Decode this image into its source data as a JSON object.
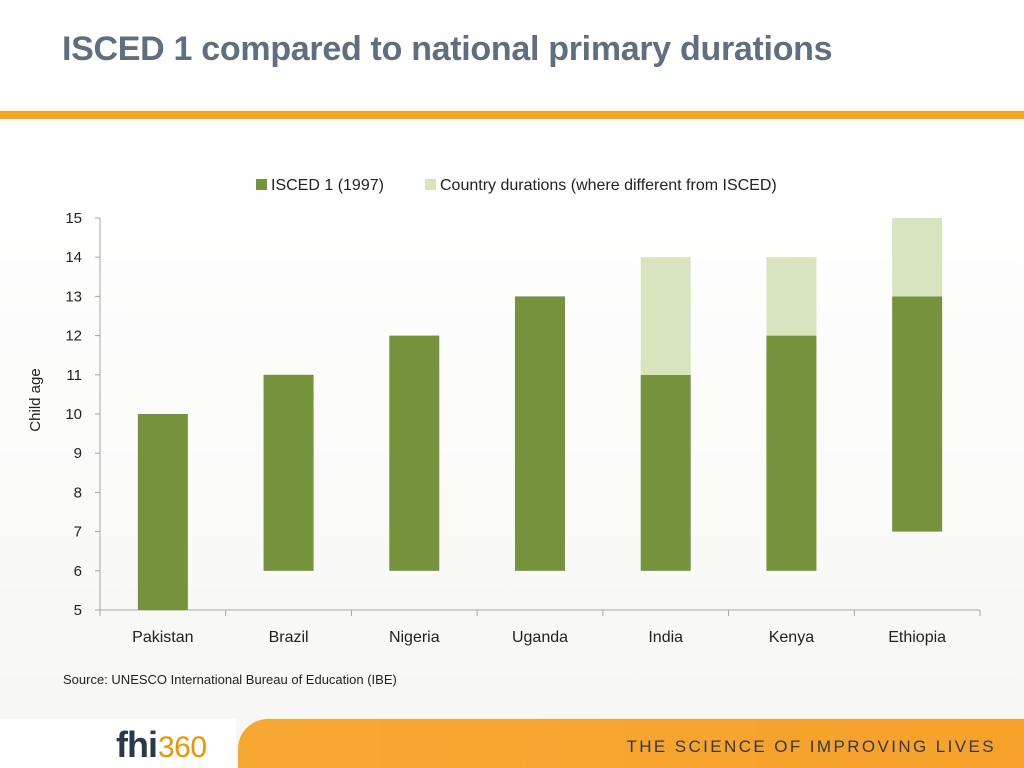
{
  "page": {
    "title": "ISCED 1 compared to national primary durations",
    "source": "Source: UNESCO International Bureau of Education (IBE)",
    "tagline": "THE SCIENCE OF IMPROVING LIVES",
    "logo_text": "fhi",
    "logo_number": "360",
    "colors": {
      "accent": "#f5a623",
      "title": "#5f6f7f"
    }
  },
  "chart_data": {
    "type": "bar",
    "subtype": "floating-stacked",
    "ylabel": "Child age",
    "xlabel": "",
    "ylim": [
      5,
      15
    ],
    "yticks": [
      5,
      6,
      7,
      8,
      9,
      10,
      11,
      12,
      13,
      14,
      15
    ],
    "categories": [
      "Pakistan",
      "Brazil",
      "Nigeria",
      "Uganda",
      "India",
      "Kenya",
      "Ethiopia"
    ],
    "legend_position": "top",
    "grid": false,
    "series": [
      {
        "name": "ISCED 1 (1997)",
        "color": "#76923c",
        "start": [
          5,
          6,
          6,
          6,
          6,
          6,
          7
        ],
        "end": [
          10,
          11,
          12,
          13,
          11,
          12,
          13
        ]
      },
      {
        "name": "Country durations (where different from ISCED)",
        "color": "#d7e4bd",
        "start": [
          null,
          null,
          null,
          null,
          11,
          12,
          13
        ],
        "end": [
          null,
          null,
          null,
          null,
          14,
          14,
          15
        ]
      }
    ]
  }
}
